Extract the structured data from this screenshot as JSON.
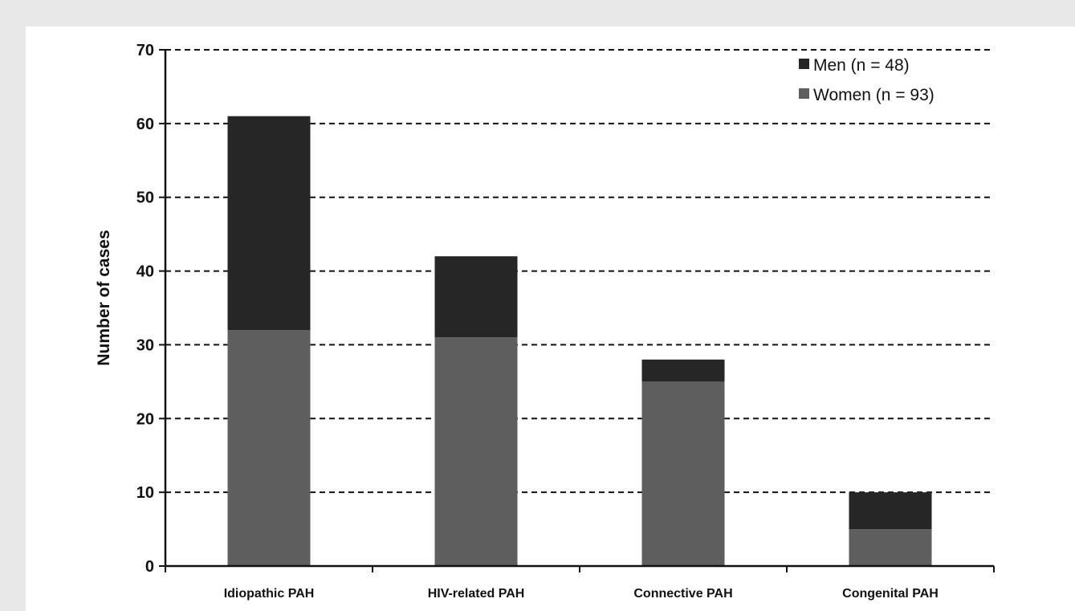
{
  "chart_data": {
    "type": "bar",
    "stacked": true,
    "categories": [
      "Idiopathic PAH",
      "HIV-related PAH",
      "Connective PAH",
      "Congenital PAH"
    ],
    "series": [
      {
        "name": "Women (n = 93)",
        "values": [
          32,
          31,
          25,
          5
        ],
        "color": "#5e5e5e"
      },
      {
        "name": "Men (n = 48)",
        "values": [
          29,
          11,
          3,
          5
        ],
        "color": "#262626"
      }
    ],
    "xlabel": "",
    "ylabel": "Number of cases",
    "ylim": [
      0,
      70
    ],
    "yticks": [
      0,
      10,
      20,
      30,
      40,
      50,
      60,
      70
    ],
    "grid": "dashed horizontal",
    "legend_position": "top-right",
    "legend_order": [
      1,
      0
    ]
  }
}
